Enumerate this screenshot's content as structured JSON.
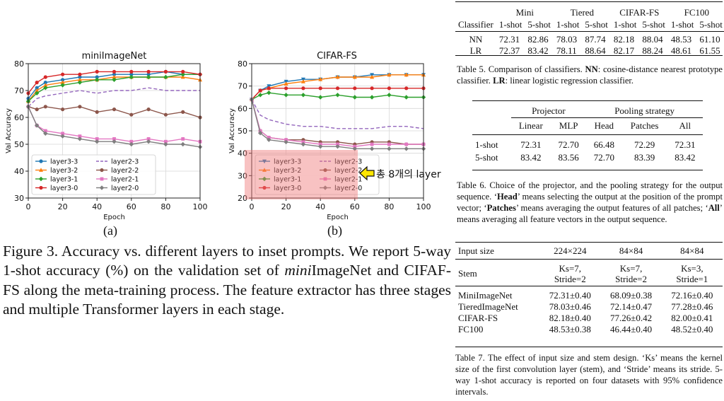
{
  "figure": {
    "plots": [
      {
        "title": "miniImageNet",
        "sublabel": "(a)"
      },
      {
        "title": "CIFAR-FS",
        "sublabel": "(b)"
      }
    ],
    "caption_prefix": "Figure 3. Accuracy vs. different layers to inset prompts. We report 5-way 1-shot accuracy (%) on the validation set of ",
    "caption_italic": "mini",
    "caption_suffix": "ImageNet and CIFAF-FS along the meta-training process. The feature extractor has three stages and multiple Transformer layers in each stage.",
    "annotation": "총 8개의 layer"
  },
  "chart_data": [
    {
      "type": "line",
      "title": "miniImageNet",
      "xlabel": "Epoch",
      "ylabel": "Val Accuracy",
      "xlim": [
        0,
        100
      ],
      "ylim": [
        30,
        80
      ],
      "xticks": [
        0,
        20,
        40,
        60,
        80,
        100
      ],
      "yticks": [
        30,
        40,
        50,
        60,
        70,
        80
      ],
      "grid": true,
      "legend": "lower-left",
      "series": [
        {
          "name": "layer3-3",
          "color": "#1f77b4",
          "marker": "circle",
          "style": "solid",
          "x": [
            0,
            5,
            10,
            20,
            30,
            40,
            50,
            60,
            70,
            80,
            90,
            100
          ],
          "values": [
            67,
            71,
            73,
            74,
            75,
            75,
            76,
            76,
            76,
            77,
            76,
            76
          ]
        },
        {
          "name": "layer3-2",
          "color": "#ff7f0e",
          "marker": "triangle",
          "style": "solid",
          "x": [
            0,
            5,
            10,
            20,
            30,
            40,
            50,
            60,
            70,
            80,
            90,
            100
          ],
          "values": [
            66,
            70,
            72,
            73,
            74,
            74,
            75,
            75,
            75,
            75,
            75,
            74
          ]
        },
        {
          "name": "layer3-1",
          "color": "#2ca02c",
          "marker": "diamond",
          "style": "solid",
          "x": [
            0,
            5,
            10,
            20,
            30,
            40,
            50,
            60,
            70,
            80,
            90,
            100
          ],
          "values": [
            66,
            69,
            71,
            72,
            73,
            74,
            74,
            75,
            75,
            75,
            76,
            76
          ]
        },
        {
          "name": "layer3-0",
          "color": "#d62728",
          "marker": "circle",
          "style": "solid",
          "x": [
            0,
            5,
            10,
            20,
            30,
            40,
            50,
            60,
            70,
            80,
            90,
            100
          ],
          "values": [
            69,
            73,
            75,
            76,
            76,
            77,
            77,
            77,
            77,
            77,
            77,
            76
          ]
        },
        {
          "name": "layer2-3",
          "color": "#9467bd",
          "marker": "none",
          "style": "dashed",
          "x": [
            0,
            5,
            10,
            20,
            30,
            40,
            50,
            60,
            70,
            80,
            90,
            100
          ],
          "values": [
            64,
            67,
            68,
            69,
            70,
            69,
            70,
            70,
            71,
            70,
            70,
            70
          ]
        },
        {
          "name": "layer2-2",
          "color": "#8c564b",
          "marker": "circle",
          "style": "solid",
          "x": [
            0,
            5,
            10,
            20,
            30,
            40,
            50,
            60,
            70,
            80,
            90,
            100
          ],
          "values": [
            64,
            63,
            64,
            63,
            64,
            62,
            63,
            61,
            63,
            61,
            62,
            60
          ]
        },
        {
          "name": "layer2-1",
          "color": "#e377c2",
          "marker": "square",
          "style": "solid",
          "x": [
            0,
            5,
            10,
            20,
            30,
            40,
            50,
            60,
            70,
            80,
            90,
            100
          ],
          "values": [
            64,
            57,
            55,
            54,
            53,
            52,
            52,
            51,
            52,
            51,
            52,
            51
          ]
        },
        {
          "name": "layer2-0",
          "color": "#7f7f7f",
          "marker": "diamond",
          "style": "solid",
          "x": [
            0,
            5,
            10,
            20,
            30,
            40,
            50,
            60,
            70,
            80,
            90,
            100
          ],
          "values": [
            64,
            57,
            54,
            53,
            52,
            51,
            51,
            50,
            51,
            50,
            50,
            49
          ]
        }
      ]
    },
    {
      "type": "line",
      "title": "CIFAR-FS",
      "xlabel": "Epoch",
      "ylabel": "Val Accuracy",
      "xlim": [
        0,
        100
      ],
      "ylim": [
        20,
        80
      ],
      "xticks": [
        0,
        20,
        40,
        60,
        80,
        100
      ],
      "yticks": [
        20,
        30,
        40,
        50,
        60,
        70,
        80
      ],
      "grid": true,
      "legend": "lower-left",
      "series": [
        {
          "name": "layer3-3",
          "color": "#1f77b4",
          "marker": "triangle-down",
          "style": "solid",
          "x": [
            0,
            5,
            10,
            20,
            30,
            40,
            50,
            60,
            70,
            80,
            90,
            100
          ],
          "values": [
            64,
            68,
            70,
            72,
            73,
            73,
            74,
            74,
            75,
            75,
            75,
            75
          ]
        },
        {
          "name": "layer3-2",
          "color": "#ff7f0e",
          "marker": "triangle",
          "style": "solid",
          "x": [
            0,
            5,
            10,
            20,
            30,
            40,
            50,
            60,
            70,
            80,
            90,
            100
          ],
          "values": [
            64,
            68,
            69,
            71,
            72,
            73,
            74,
            74,
            74,
            75,
            75,
            75
          ]
        },
        {
          "name": "layer3-1",
          "color": "#2ca02c",
          "marker": "diamond",
          "style": "solid",
          "x": [
            0,
            5,
            10,
            20,
            30,
            40,
            50,
            60,
            70,
            80,
            90,
            100
          ],
          "values": [
            64,
            66,
            67,
            66,
            66,
            65,
            66,
            65,
            65,
            66,
            65,
            65
          ]
        },
        {
          "name": "layer3-0",
          "color": "#d62728",
          "marker": "circle",
          "style": "solid",
          "x": [
            0,
            5,
            10,
            20,
            30,
            40,
            50,
            60,
            70,
            80,
            90,
            100
          ],
          "values": [
            64,
            68,
            69,
            69,
            69,
            69,
            69,
            69,
            69,
            69,
            69,
            69
          ]
        },
        {
          "name": "layer2-3",
          "color": "#9467bd",
          "marker": "none",
          "style": "dashed",
          "x": [
            0,
            5,
            10,
            20,
            30,
            40,
            50,
            60,
            70,
            80,
            90,
            100
          ],
          "values": [
            64,
            57,
            55,
            53,
            52,
            52,
            51,
            51,
            51,
            52,
            52,
            51
          ]
        },
        {
          "name": "layer2-2",
          "color": "#8c564b",
          "marker": "circle",
          "style": "solid",
          "x": [
            0,
            5,
            10,
            20,
            30,
            40,
            50,
            60,
            70,
            80,
            90,
            100
          ],
          "values": [
            64,
            50,
            47,
            46,
            46,
            45,
            45,
            44,
            45,
            45,
            44,
            44
          ]
        },
        {
          "name": "layer2-1",
          "color": "#e377c2",
          "marker": "square",
          "style": "solid",
          "x": [
            0,
            5,
            10,
            20,
            30,
            40,
            50,
            60,
            70,
            80,
            90,
            100
          ],
          "values": [
            64,
            50,
            47,
            46,
            45,
            44,
            44,
            43,
            44,
            44,
            44,
            44
          ]
        },
        {
          "name": "layer2-0",
          "color": "#7f7f7f",
          "marker": "diamond",
          "style": "solid",
          "x": [
            0,
            5,
            10,
            20,
            30,
            40,
            50,
            60,
            70,
            80,
            90,
            100
          ],
          "values": [
            64,
            49,
            46,
            45,
            44,
            43,
            43,
            42,
            42,
            42,
            42,
            42
          ]
        }
      ]
    }
  ],
  "table5": {
    "header_groups": [
      "Mini",
      "Tiered",
      "CIFAR-FS",
      "FC100"
    ],
    "classifier_label": "Classifier",
    "shots": [
      "1-shot",
      "5-shot",
      "1-shot",
      "5-shot",
      "1-shot",
      "5-shot",
      "1-shot",
      "5-shot"
    ],
    "rows": [
      {
        "label": "NN",
        "values": [
          "72.31",
          "82.86",
          "78.03",
          "87.74",
          "82.18",
          "88.04",
          "48.53",
          "61.10"
        ]
      },
      {
        "label": "LR",
        "values": [
          "72.37",
          "83.42",
          "78.11",
          "88.64",
          "82.17",
          "88.24",
          "48.61",
          "61.55"
        ]
      }
    ],
    "caption_parts": [
      {
        "t": "Table 5.  Comparison of classifiers.  ",
        "b": false
      },
      {
        "t": "NN",
        "b": true
      },
      {
        "t": ": cosine-distance nearest prototype classifier. ",
        "b": false
      },
      {
        "t": "LR",
        "b": true
      },
      {
        "t": ": linear logistic regression classifier.",
        "b": false
      }
    ]
  },
  "table6": {
    "group1": "Projector",
    "group2": "Pooling strategy",
    "cols": [
      "Linear",
      "MLP",
      "Head",
      "Patches",
      "All"
    ],
    "rows": [
      {
        "label": "1-shot",
        "values": [
          "72.31",
          "72.70",
          "66.48",
          "72.29",
          "72.31"
        ]
      },
      {
        "label": "5-shot",
        "values": [
          "83.42",
          "83.56",
          "72.70",
          "83.39",
          "83.42"
        ]
      }
    ],
    "caption_parts": [
      {
        "t": "Table 6.  Choice of the projector, and the pooling strategy for the output sequence.  ‘",
        "b": false
      },
      {
        "t": "Head",
        "b": true
      },
      {
        "t": "’ means selecting the output at the position of the prompt vector; ‘",
        "b": false
      },
      {
        "t": "Patches",
        "b": true
      },
      {
        "t": "’ means averaging the output features of all patches; ‘",
        "b": false
      },
      {
        "t": "All",
        "b": true
      },
      {
        "t": "’ means averaging all feature vectors in the output sequence.",
        "b": false
      }
    ]
  },
  "table7": {
    "row_input_label": "Input size",
    "input_sizes": [
      "224×224",
      "84×84",
      "84×84"
    ],
    "row_stem_label": "Stem",
    "stem_line1": [
      "Ks=7,",
      "Ks=7,",
      "Ks=3,"
    ],
    "stem_line2": [
      "Stride=2",
      "Stride=2",
      "Stride=1"
    ],
    "rows": [
      {
        "label": "MiniImageNet",
        "values": [
          "72.31±0.40",
          "68.09±0.38",
          "72.16±0.40"
        ]
      },
      {
        "label": "TieredImageNet",
        "values": [
          "78.03±0.46",
          "72.14±0.47",
          "77.28±0.46"
        ]
      },
      {
        "label": "CIFAR-FS",
        "values": [
          "82.18±0.40",
          "77.26±0.42",
          "82.00±0.41"
        ]
      },
      {
        "label": "FC100",
        "values": [
          "48.53±0.38",
          "46.44±0.40",
          "48.52±0.40"
        ]
      }
    ],
    "caption": "Table 7. The effect of input size and stem design. ‘Ks’ means the kernel size of the first convolution layer (stem), and ‘Stride’ means its stride. 5-way 1-shot accuracy is reported on four datasets with 95% confidence intervals."
  }
}
